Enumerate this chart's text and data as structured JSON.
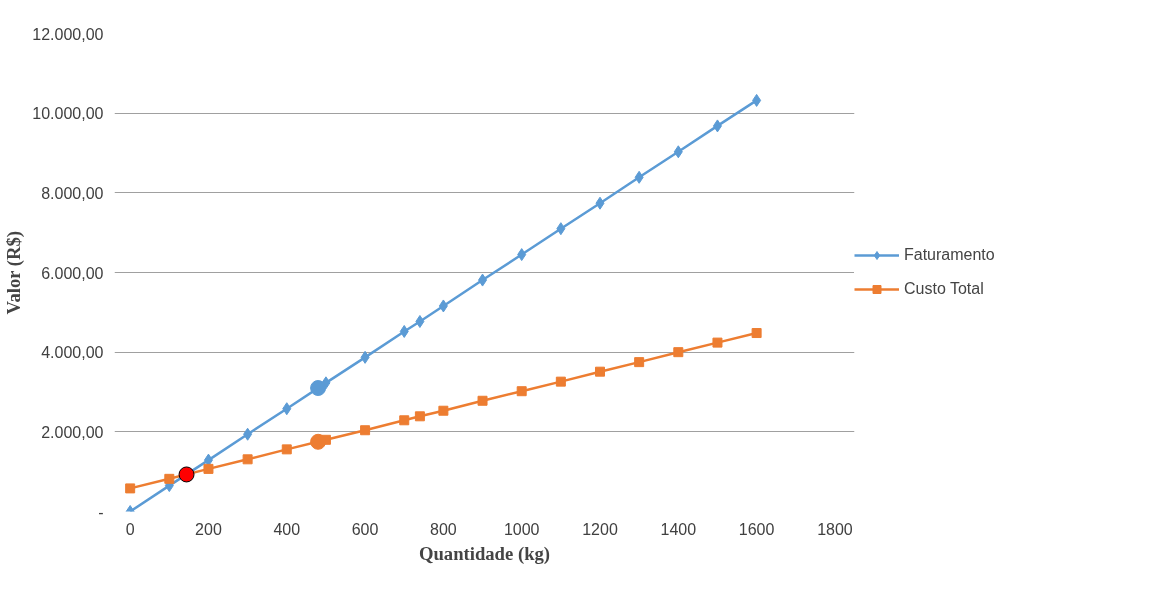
{
  "chart_data": {
    "type": "line",
    "xlabel": "Quantidade (kg)",
    "ylabel": "Valor (R$)",
    "xlim": [
      -40,
      1850
    ],
    "xticks": [
      0,
      200,
      400,
      600,
      800,
      1000,
      1200,
      1400,
      1600,
      1800
    ],
    "ylim": [
      0,
      12000
    ],
    "yticks": [
      {
        "value": 0,
        "label": "-"
      },
      {
        "value": 2000,
        "label": "2.000,00"
      },
      {
        "value": 4000,
        "label": "4.000,00"
      },
      {
        "value": 6000,
        "label": "6.000,00"
      },
      {
        "value": 8000,
        "label": "8.000,00"
      },
      {
        "value": 10000,
        "label": "10.000,00"
      },
      {
        "value": 12000,
        "label": "12.000,00"
      }
    ],
    "grid": "y",
    "legend": "right",
    "series": [
      {
        "name": "Faturamento",
        "color": "#5b9bd5",
        "marker": "diamond",
        "x": [
          0,
          100,
          200,
          300,
          400,
          500,
          600,
          700,
          740,
          800,
          900,
          1000,
          1100,
          1200,
          1300,
          1400,
          1500,
          1600
        ],
        "values": [
          0,
          650,
          1290,
          1940,
          2580,
          3230,
          3870,
          4520,
          4770,
          5160,
          5810,
          6450,
          7100,
          7740,
          8390,
          9030,
          9680,
          10320
        ]
      },
      {
        "name": "Custo Total",
        "color": "#ed7d31",
        "marker": "square",
        "x": [
          0,
          100,
          200,
          300,
          400,
          500,
          600,
          700,
          740,
          800,
          900,
          1000,
          1100,
          1200,
          1300,
          1400,
          1500,
          1600
        ],
        "values": [
          580,
          820,
          1070,
          1310,
          1560,
          1800,
          2040,
          2290,
          2390,
          2530,
          2780,
          3020,
          3260,
          3510,
          3750,
          4000,
          4240,
          4480
        ]
      },
      {
        "type": "scatter",
        "color": "#5b9bd5",
        "marker": "circle",
        "x": [
          480
        ],
        "values": [
          3100
        ]
      },
      {
        "type": "scatter",
        "color": "#ed7d31",
        "marker": "circle",
        "x": [
          480
        ],
        "values": [
          1750
        ]
      },
      {
        "type": "scatter",
        "color": "#ff0000",
        "marker": "circle",
        "x": [
          144
        ],
        "values": [
          930
        ]
      }
    ]
  }
}
